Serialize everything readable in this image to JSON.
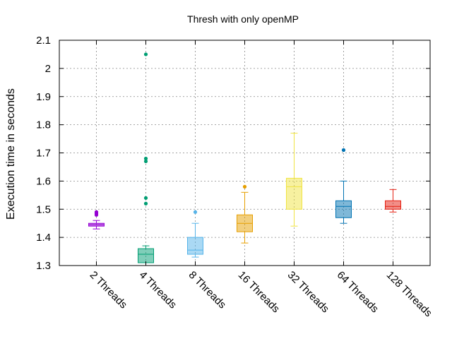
{
  "chart_data": {
    "type": "box",
    "title": "Thresh with only openMP",
    "ylabel": "Execution time in seconds",
    "xlabel": "",
    "ylim": [
      1.3,
      2.1
    ],
    "yticks": [
      "1.3",
      "1.4",
      "1.5",
      "1.6",
      "1.7",
      "1.8",
      "1.9",
      "2",
      "2.1"
    ],
    "grid": true,
    "categories": [
      "2 Threads",
      "4 Threads",
      "8 Threads",
      "16 Threads",
      "32 Threads",
      "64 Threads",
      "128 Threads"
    ],
    "boxes": [
      {
        "whisker_low": 1.43,
        "q1": 1.44,
        "median": 1.445,
        "q3": 1.45,
        "whisker_high": 1.46,
        "outliers": [
          1.48,
          1.485,
          1.49
        ],
        "color": "#9400d3"
      },
      {
        "whisker_low": 1.31,
        "q1": 1.31,
        "median": 1.34,
        "q3": 1.36,
        "whisker_high": 1.37,
        "outliers": [
          1.52,
          1.54,
          1.67,
          1.68,
          2.05
        ],
        "color": "#009e73"
      },
      {
        "whisker_low": 1.33,
        "q1": 1.34,
        "median": 1.355,
        "q3": 1.4,
        "whisker_high": 1.45,
        "outliers": [
          1.49
        ],
        "color": "#56b4e9"
      },
      {
        "whisker_low": 1.38,
        "q1": 1.42,
        "median": 1.45,
        "q3": 1.48,
        "whisker_high": 1.56,
        "outliers": [
          1.58
        ],
        "color": "#e69f00"
      },
      {
        "whisker_low": 1.44,
        "q1": 1.5,
        "median": 1.58,
        "q3": 1.61,
        "whisker_high": 1.77,
        "outliers": [],
        "color": "#f0e442"
      },
      {
        "whisker_low": 1.45,
        "q1": 1.47,
        "median": 1.51,
        "q3": 1.53,
        "whisker_high": 1.6,
        "outliers": [
          1.71
        ],
        "color": "#0072b2"
      },
      {
        "whisker_low": 1.49,
        "q1": 1.5,
        "median": 1.51,
        "q3": 1.53,
        "whisker_high": 1.57,
        "outliers": [],
        "color": "#e51e10"
      }
    ]
  }
}
